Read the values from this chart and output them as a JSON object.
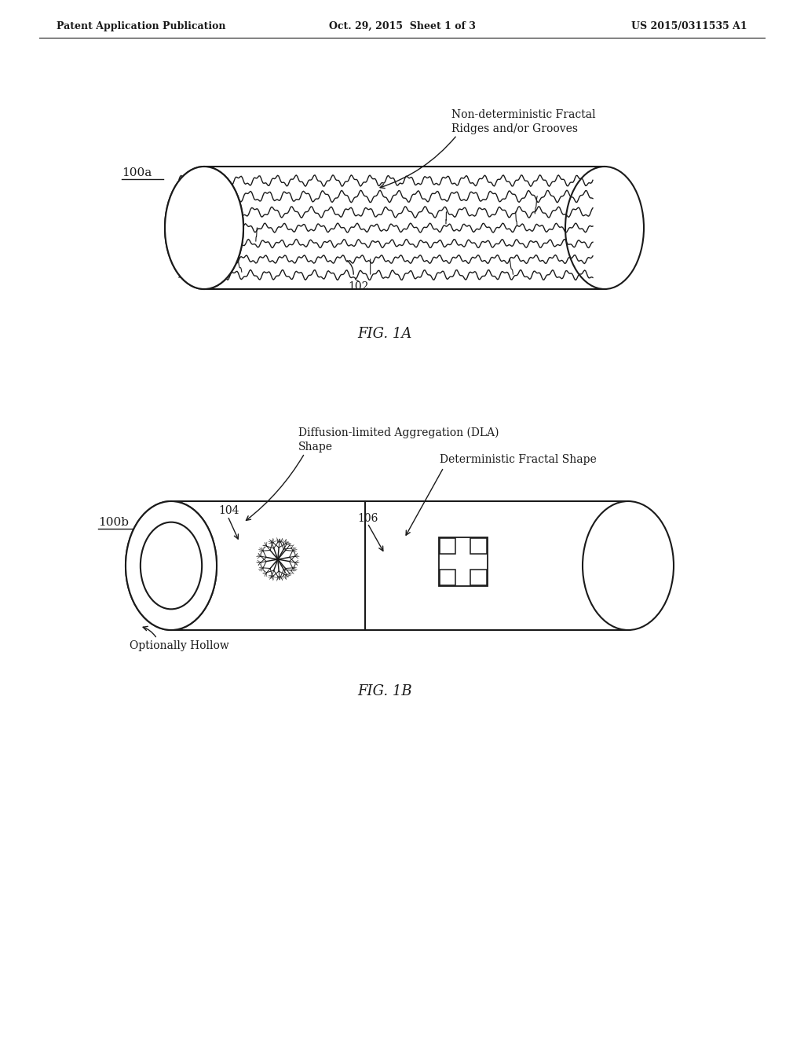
{
  "bg_color": "#ffffff",
  "header_left": "Patent Application Publication",
  "header_center": "Oct. 29, 2015  Sheet 1 of 3",
  "header_right": "US 2015/0311535 A1",
  "fig1a_label": "FIG. 1A",
  "fig1b_label": "FIG. 1B",
  "label_100a": "100a",
  "label_100b": "100b",
  "label_102": "102",
  "label_104": "104",
  "label_106": "106",
  "annotation_fractal_ridges": "Non-deterministic Fractal\nRidges and/or Grooves",
  "annotation_dla": "Diffusion-limited Aggregation (DLA)\nShape",
  "annotation_det_fractal": "Deterministic Fractal Shape",
  "annotation_hollow": "Optionally Hollow",
  "line_color": "#1a1a1a",
  "text_color": "#1a1a1a"
}
